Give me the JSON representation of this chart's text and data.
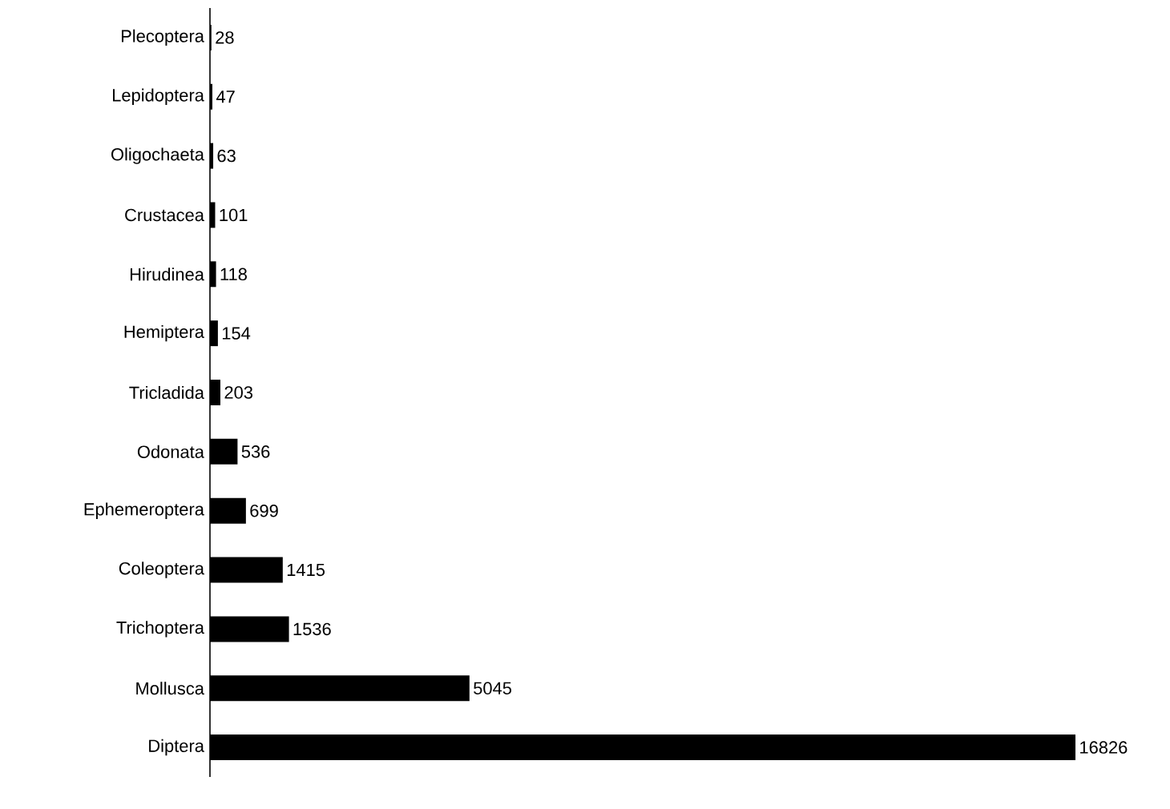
{
  "chart_data": {
    "type": "bar",
    "orientation": "horizontal",
    "categories": [
      "Plecoptera",
      "Lepidoptera",
      "Oligochaeta",
      "Crustacea",
      "Hirudinea",
      "Hemiptera",
      "Tricladida",
      "Odonata",
      "Ephemeroptera",
      "Coleoptera",
      "Trichoptera",
      "Mollusca",
      "Diptera"
    ],
    "values": [
      28,
      47,
      63,
      101,
      118,
      154,
      203,
      536,
      699,
      1415,
      1536,
      5045,
      16826
    ],
    "color": "#000000",
    "data_labels": true
  }
}
